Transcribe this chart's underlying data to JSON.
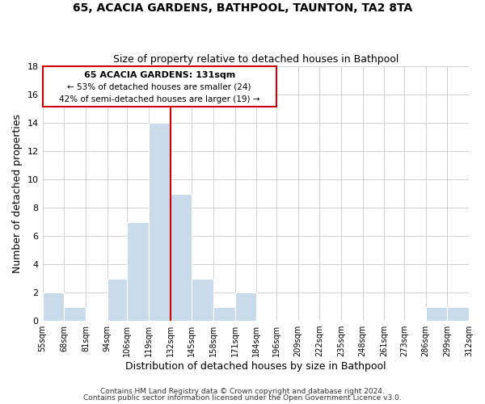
{
  "title": "65, ACACIA GARDENS, BATHPOOL, TAUNTON, TA2 8TA",
  "subtitle": "Size of property relative to detached houses in Bathpool",
  "xlabel": "Distribution of detached houses by size in Bathpool",
  "ylabel": "Number of detached properties",
  "bin_edges": [
    55,
    68,
    81,
    94,
    106,
    119,
    132,
    145,
    158,
    171,
    184,
    196,
    209,
    222,
    235,
    248,
    261,
    273,
    286,
    299,
    312
  ],
  "bin_labels": [
    "55sqm",
    "68sqm",
    "81sqm",
    "94sqm",
    "106sqm",
    "119sqm",
    "132sqm",
    "145sqm",
    "158sqm",
    "171sqm",
    "184sqm",
    "196sqm",
    "209sqm",
    "222sqm",
    "235sqm",
    "248sqm",
    "261sqm",
    "273sqm",
    "286sqm",
    "299sqm",
    "312sqm"
  ],
  "counts": [
    2,
    1,
    0,
    3,
    7,
    14,
    9,
    3,
    1,
    2,
    0,
    0,
    0,
    0,
    0,
    0,
    0,
    0,
    1,
    1,
    0
  ],
  "bar_color": "#c9daea",
  "grid_color": "#d0d0d0",
  "vline_x": 132,
  "vline_color": "#cc0000",
  "annotation_title": "65 ACACIA GARDENS: 131sqm",
  "annotation_line1": "← 53% of detached houses are smaller (24)",
  "annotation_line2": "42% of semi-detached houses are larger (19) →",
  "annotation_box_edge": "#cc0000",
  "ylim": [
    0,
    18
  ],
  "yticks": [
    0,
    2,
    4,
    6,
    8,
    10,
    12,
    14,
    16,
    18
  ],
  "footer1": "Contains HM Land Registry data © Crown copyright and database right 2024.",
  "footer2": "Contains public sector information licensed under the Open Government Licence v3.0."
}
